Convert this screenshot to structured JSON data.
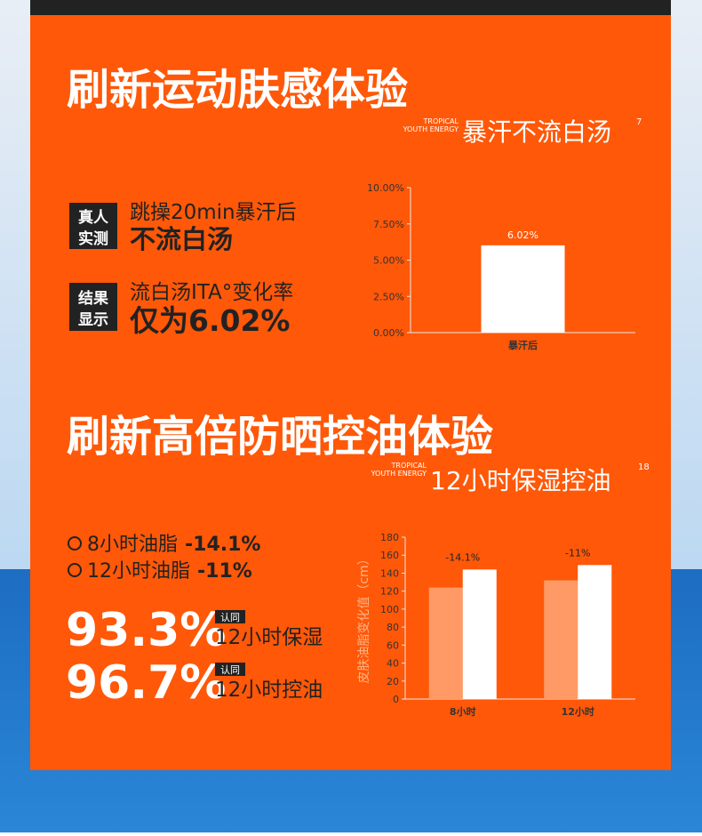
{
  "section1": {
    "title": "刷新运动肤感体验",
    "brand": [
      "TROPICAL",
      "YOUTH ENERGY"
    ],
    "subtitle": "暴汗不流白汤",
    "note": "7",
    "items": [
      {
        "badge": [
          "真人",
          "实测"
        ],
        "line1": "跳操20min暴汗后",
        "line2": "不流白汤"
      },
      {
        "badge": [
          "结果",
          "显示"
        ],
        "line1": "流白汤ITA°变化率",
        "line2": "仅为6.02%"
      }
    ]
  },
  "section2": {
    "title": "刷新高倍防晒控油体验",
    "brand": [
      "TROPICAL",
      "YOUTH ENERGY"
    ],
    "subtitle": "12小时保湿控油",
    "note": "18",
    "list": [
      {
        "label": "8小时油脂",
        "value": "-14.1%"
      },
      {
        "label": "12小时油脂",
        "value": "-11%"
      }
    ],
    "stats": [
      {
        "value": "93.3%",
        "badge": "认同",
        "label": "12小时保湿"
      },
      {
        "value": "96.7%",
        "badge": "认同",
        "label": "12小时控油"
      }
    ]
  },
  "chart_data": [
    {
      "type": "bar",
      "categories": [
        "暴汗后"
      ],
      "values": [
        6.02
      ],
      "value_labels": [
        "6.02%"
      ],
      "color": "#ffffff",
      "ylim": [
        0,
        10
      ],
      "yticks": [
        {
          "value": 0,
          "label": "0.00%"
        },
        {
          "value": 2.5,
          "label": "2.50%"
        },
        {
          "value": 5,
          "label": "5.00%"
        },
        {
          "value": 7.5,
          "label": "7.50%"
        },
        {
          "value": 10,
          "label": "10.00%"
        }
      ]
    },
    {
      "type": "bar",
      "ylabel": "皮肤油脂变化值（cm）",
      "categories": [
        "8小时",
        "12小时"
      ],
      "series": [
        {
          "color": "#ff9a66",
          "values": [
            124,
            132
          ]
        },
        {
          "color": "#ffffff",
          "values": [
            144,
            149
          ]
        }
      ],
      "annotations": [
        "-14.1%",
        "-11%"
      ],
      "ylim": [
        0,
        180
      ],
      "yticks": [
        0,
        20,
        40,
        60,
        80,
        100,
        120,
        140,
        160,
        180
      ]
    }
  ]
}
